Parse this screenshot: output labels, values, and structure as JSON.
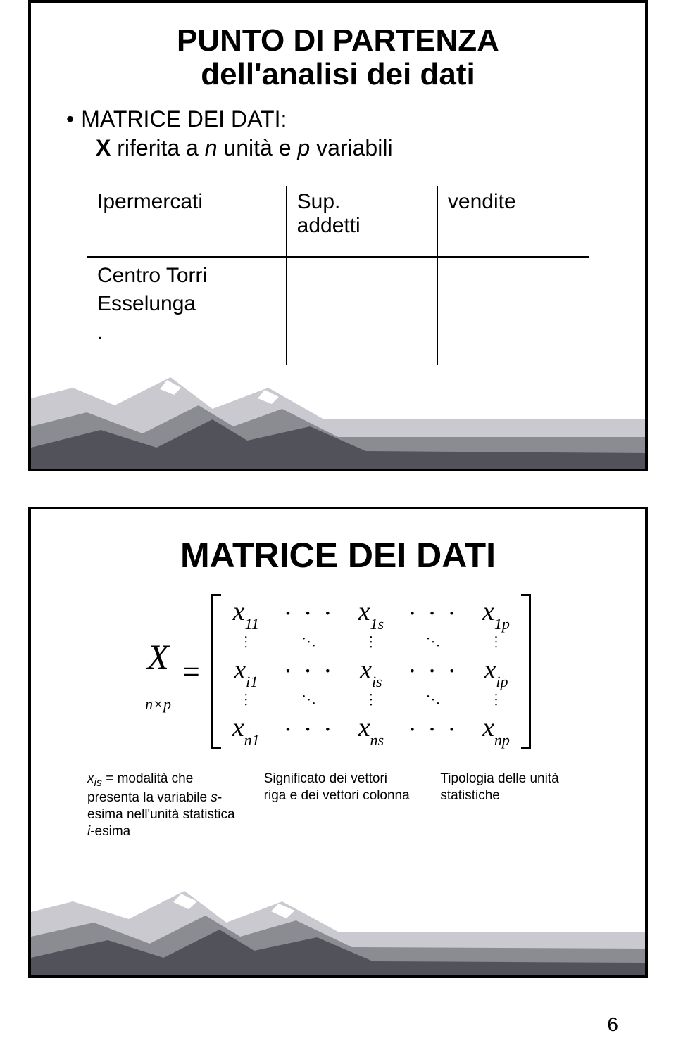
{
  "slide1": {
    "title_line1": "PUNTO DI PARTENZA",
    "title_line2": "dell'analisi dei dati",
    "bullet_label": "MATRICE DEI DATI:",
    "sub_prefix": "X",
    "sub_mid1": " riferita a ",
    "sub_n": "n",
    "sub_mid2": " unità e ",
    "sub_p": "p",
    "sub_tail": " variabili",
    "table": {
      "headers": [
        "Ipermercati",
        "Sup.",
        "addetti",
        "vendite"
      ],
      "rows": [
        [
          "Centro Torri",
          "",
          "",
          ""
        ],
        [
          "Esselunga",
          "",
          "",
          ""
        ],
        [
          ".",
          "",
          "",
          ""
        ]
      ]
    }
  },
  "slide2": {
    "title": "MATRICE DEI DATI",
    "lhs_main": "X",
    "lhs_sub": "n×p",
    "equals": "=",
    "matrix": {
      "cells": [
        [
          "x_{11}",
          "⋯",
          "x_{1s}",
          "⋯",
          "x_{1p}"
        ],
        [
          "⋮",
          "⋱",
          "⋮",
          "⋱",
          "⋮"
        ],
        [
          "x_{i1}",
          "⋯",
          "x_{is}",
          "⋯",
          "x_{ip}"
        ],
        [
          "⋮",
          "⋱",
          "⋮",
          "⋱",
          "⋮"
        ],
        [
          "x_{n1}",
          "⋯",
          "x_{ns}",
          "⋯",
          "x_{np}"
        ]
      ]
    },
    "captions": {
      "cap1_prefix": "x",
      "cap1_sub": "is",
      "cap1_mid": " = modalità che presenta la variabile ",
      "cap1_s": "s",
      "cap1_mid2": "-esima nell'unità statistica ",
      "cap1_i": "i",
      "cap1_tail": "-esima",
      "cap2": "Significato dei vettori riga e dei vettori colonna",
      "cap3": "Tipologia delle unità statistiche"
    }
  },
  "page_number": "6",
  "colors": {
    "mountain_dark": "#52525a",
    "mountain_mid": "#8b8b92",
    "mountain_light": "#c9c9cf",
    "mountain_white": "#ffffff",
    "border": "#000000"
  }
}
